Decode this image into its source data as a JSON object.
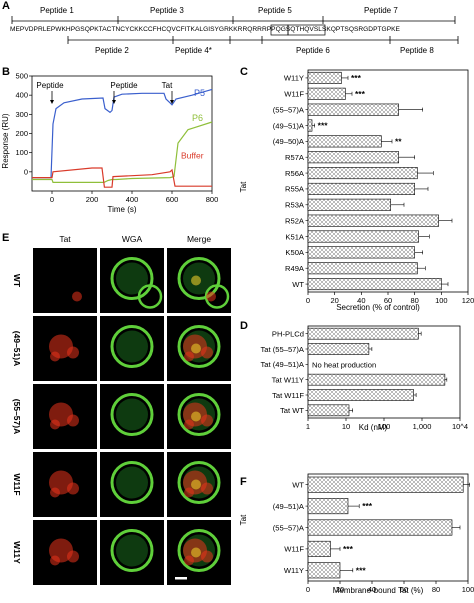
{
  "panelA": {
    "label": "A",
    "sequence": "MEPVDPRLEPWKHPGSQPKTACTNCYCKKCCFHCQVCFITKALGISYGRKKRRQRRRPPQGSQTHQVSLSKQPTSQSRGDPTGPKE",
    "peptides_top": [
      "Peptide 1",
      "Peptide 3",
      "Peptide 5",
      "Peptide 7"
    ],
    "peptides_bottom": [
      "Peptide 2",
      "Peptide 4*",
      "Peptide 6",
      "Peptide 8"
    ]
  },
  "panelB": {
    "label": "B",
    "ylabel": "Response (RU)",
    "xlabel": "Time (s)",
    "annotations": [
      "Peptide",
      "Peptide",
      "Tat"
    ],
    "chart_data": {
      "type": "line",
      "xlim": [
        -100,
        800
      ],
      "ylim": [
        -100,
        500
      ],
      "xticks": [
        0,
        200,
        400,
        600,
        800
      ],
      "yticks": [
        0,
        100,
        200,
        300,
        400,
        500
      ],
      "series": [
        {
          "name": "P5",
          "color": "#3a5fcd",
          "points": [
            [
              -100,
              -30
            ],
            [
              -5,
              -30
            ],
            [
              5,
              250
            ],
            [
              20,
              330
            ],
            [
              60,
              360
            ],
            [
              150,
              380
            ],
            [
              255,
              385
            ],
            [
              265,
              330
            ],
            [
              290,
              310
            ],
            [
              300,
              320
            ],
            [
              310,
              390
            ],
            [
              350,
              405
            ],
            [
              450,
              410
            ],
            [
              560,
              410
            ],
            [
              570,
              380
            ],
            [
              590,
              360
            ],
            [
              600,
              350
            ],
            [
              620,
              380
            ],
            [
              700,
              400
            ],
            [
              800,
              430
            ]
          ]
        },
        {
          "name": "P6",
          "color": "#8fbf3a",
          "points": [
            [
              -100,
              -40
            ],
            [
              0,
              -40
            ],
            [
              5,
              -55
            ],
            [
              100,
              -55
            ],
            [
              260,
              -55
            ],
            [
              280,
              -45
            ],
            [
              300,
              -40
            ],
            [
              320,
              -40
            ],
            [
              400,
              -35
            ],
            [
              590,
              -30
            ],
            [
              610,
              -25
            ],
            [
              630,
              150
            ],
            [
              680,
              220
            ],
            [
              800,
              260
            ]
          ]
        },
        {
          "name": "Buffer",
          "color": "#d93a2a",
          "points": [
            [
              -100,
              -30
            ],
            [
              0,
              -30
            ],
            [
              5,
              0
            ],
            [
              200,
              20
            ],
            [
              250,
              20
            ],
            [
              262,
              -80
            ],
            [
              300,
              -80
            ],
            [
              305,
              -25
            ],
            [
              500,
              -15
            ],
            [
              590,
              0
            ],
            [
              600,
              10
            ],
            [
              615,
              -75
            ],
            [
              700,
              -75
            ],
            [
              800,
              -75
            ]
          ]
        }
      ]
    }
  },
  "panelC": {
    "label": "C",
    "ylabel": "Tat",
    "xlabel": "Secretion (% of control)",
    "chart_data": {
      "type": "bar",
      "orientation": "horizontal",
      "categories": [
        "W11Y",
        "W11F",
        "(55–57)A",
        "(49–51)A",
        "(49–50)A",
        "R57A",
        "R56A",
        "R55A",
        "R53A",
        "R52A",
        "K51A",
        "K50A",
        "R49A",
        "WT"
      ],
      "values": [
        25,
        28,
        68,
        3,
        55,
        68,
        82,
        80,
        62,
        98,
        83,
        80,
        82,
        100
      ],
      "errors": [
        5,
        5,
        18,
        2,
        8,
        12,
        12,
        10,
        10,
        10,
        8,
        6,
        6,
        5
      ],
      "significance": [
        "***",
        "***",
        "",
        "***",
        "**",
        "",
        "",
        "",
        "",
        "",
        "",
        "",
        "",
        ""
      ],
      "xlim": [
        0,
        120
      ],
      "xticks": [
        0,
        20,
        40,
        60,
        80,
        100,
        120
      ]
    }
  },
  "panelD": {
    "label": "D",
    "xlabel": "Kd (nM)",
    "note": "No heat production",
    "chart_data": {
      "type": "bar",
      "orientation": "horizontal",
      "scale": "log",
      "categories": [
        "PH-PLCd",
        "Tat (55–57)A",
        "Tat (49–51)A",
        "Tat W11Y",
        "Tat W11F",
        "Tat WT"
      ],
      "values": [
        800,
        40,
        null,
        4000,
        600,
        12
      ],
      "errors": [
        150,
        8,
        null,
        500,
        100,
        3
      ],
      "xlim": [
        1,
        10000
      ],
      "xticks": [
        "1",
        "10",
        "100",
        "1,000",
        "10^4"
      ]
    }
  },
  "panelE": {
    "label": "E",
    "columns": [
      "Tat",
      "WGA",
      "Merge"
    ],
    "rows": [
      "WT",
      "(49–51)A",
      "(55–57)A",
      "W11F",
      "W11Y"
    ]
  },
  "panelF": {
    "label": "F",
    "ylabel": "Tat",
    "xlabel": "Membrane-bound Tat (%)",
    "chart_data": {
      "type": "bar",
      "orientation": "horizontal",
      "categories": [
        "WT",
        "(49–51)A",
        "(55–57)A",
        "W11F",
        "W11Y"
      ],
      "values": [
        97,
        25,
        90,
        14,
        20
      ],
      "errors": [
        4,
        7,
        5,
        6,
        8
      ],
      "significance": [
        "",
        "***",
        "",
        "***",
        "***"
      ],
      "xlim": [
        0,
        100
      ],
      "xticks": [
        0,
        20,
        40,
        60,
        80,
        100
      ]
    }
  },
  "colors": {
    "p5": "#3a5fcd",
    "p6": "#8fbf3a",
    "buffer": "#d93a2a",
    "tat_red": "#e8331c",
    "wga_green": "#5fcf3a"
  }
}
